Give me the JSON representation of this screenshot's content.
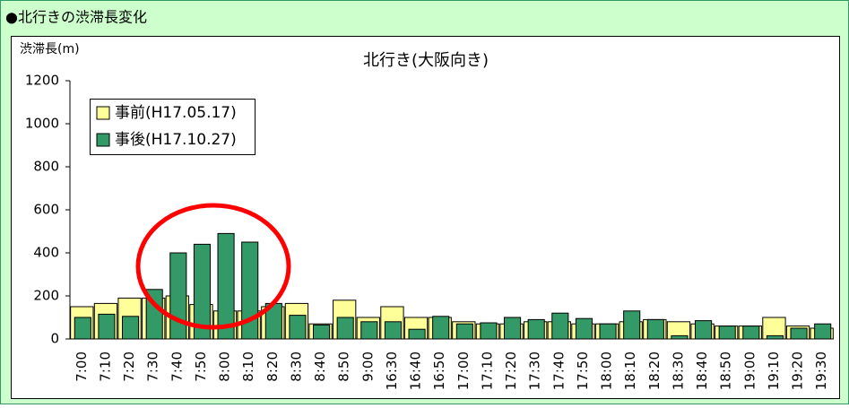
{
  "header": {
    "title": "●北行きの渋滞長変化"
  },
  "chart_data": {
    "type": "bar",
    "title": "北行き(大阪向き)",
    "y_label": "渋滞長(m)",
    "categories": [
      "7:00",
      "7:10",
      "7:20",
      "7:30",
      "7:40",
      "7:50",
      "8:00",
      "8:10",
      "8:20",
      "8:30",
      "8:40",
      "8:50",
      "9:00",
      "16:30",
      "16:40",
      "16:50",
      "17:00",
      "17:10",
      "17:20",
      "17:30",
      "17:40",
      "17:50",
      "18:00",
      "18:10",
      "18:20",
      "18:30",
      "18:40",
      "18:50",
      "19:00",
      "19:10",
      "19:20",
      "19:30"
    ],
    "series": [
      {
        "name": "事前(H17.05.17)",
        "color": "#ffff99",
        "values": [
          150,
          165,
          190,
          190,
          200,
          160,
          130,
          130,
          150,
          165,
          70,
          180,
          100,
          150,
          100,
          100,
          80,
          70,
          70,
          80,
          80,
          70,
          70,
          80,
          90,
          80,
          70,
          60,
          60,
          100,
          60,
          50
        ]
      },
      {
        "name": "事後(H17.10.27)",
        "color": "#339966",
        "values": [
          100,
          115,
          105,
          230,
          400,
          440,
          490,
          450,
          165,
          110,
          65,
          100,
          80,
          80,
          45,
          105,
          70,
          75,
          100,
          90,
          120,
          95,
          70,
          130,
          90,
          15,
          85,
          60,
          60,
          15,
          50,
          70
        ]
      }
    ],
    "ylim": [
      0,
      1200
    ],
    "yticks": [
      0,
      200,
      400,
      600,
      800,
      1000,
      1200
    ],
    "grid": false,
    "legend": "upper left"
  }
}
